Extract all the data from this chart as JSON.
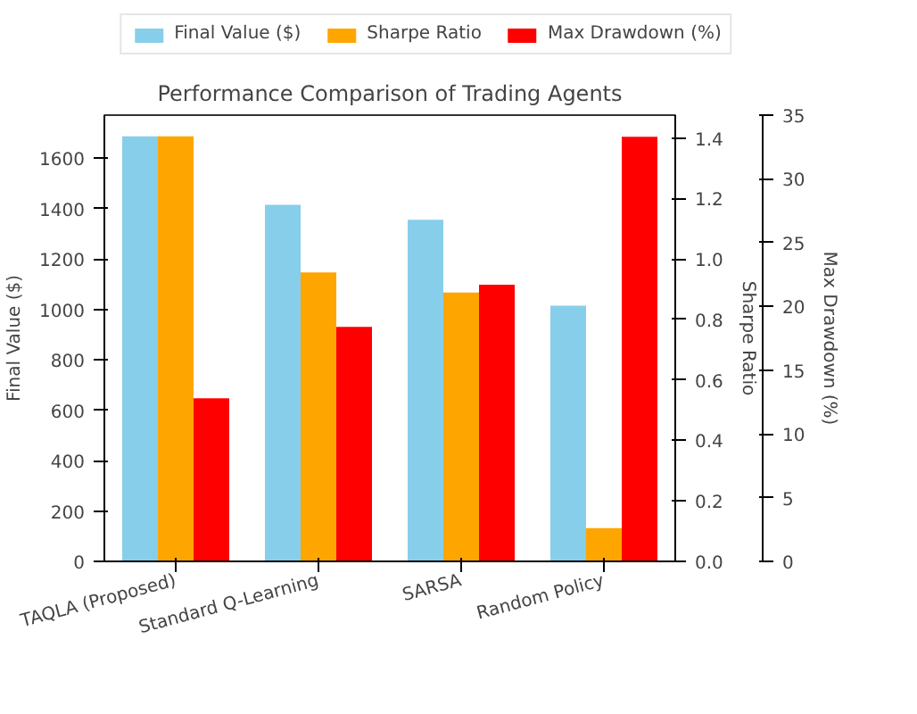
{
  "chart_data": {
    "type": "bar",
    "title": "Performance Comparison of Trading Agents",
    "categories": [
      "TAQLA (Proposed)",
      "Standard Q-Learning",
      "SARSA",
      "Random Policy"
    ],
    "series": [
      {
        "name": "Final Value ($)",
        "color": "#87ceeb",
        "values": [
          1686,
          1414,
          1355,
          1014
        ]
      },
      {
        "name": "Sharpe Ratio",
        "color": "#ffa500",
        "values": [
          1.406,
          0.956,
          0.889,
          0.11
        ],
        "axis": "y2"
      },
      {
        "name": "Max Drawdown (%)",
        "color": "#ff0000",
        "values": [
          12.8,
          18.4,
          21.7,
          33.3
        ],
        "axis": "y3"
      }
    ],
    "ylabel": "Final Value ($)",
    "y2label": "Sharpe Ratio",
    "y3label": "Max Drawdown (%)",
    "ylim": [
      0,
      1770
    ],
    "yticks": [
      0,
      200,
      400,
      600,
      800,
      1000,
      1200,
      1400,
      1600
    ],
    "y2lim": [
      0,
      1.476
    ],
    "y2ticks": [
      {
        "value": 0,
        "label": "0.0"
      },
      {
        "value": 0.2,
        "label": "0.2"
      },
      {
        "value": 0.4,
        "label": "0.4"
      },
      {
        "value": 0.6,
        "label": "0.6"
      },
      {
        "value": 0.8,
        "label": "0.8"
      },
      {
        "value": 1.0,
        "label": "1.0"
      },
      {
        "value": 1.2,
        "label": "1.2"
      },
      {
        "value": 1.4,
        "label": "1.4"
      }
    ],
    "y3lim": [
      0,
      35
    ],
    "y3ticks": [
      0,
      5,
      10,
      15,
      20,
      25,
      30,
      35
    ],
    "legend": "top",
    "grid": false
  }
}
